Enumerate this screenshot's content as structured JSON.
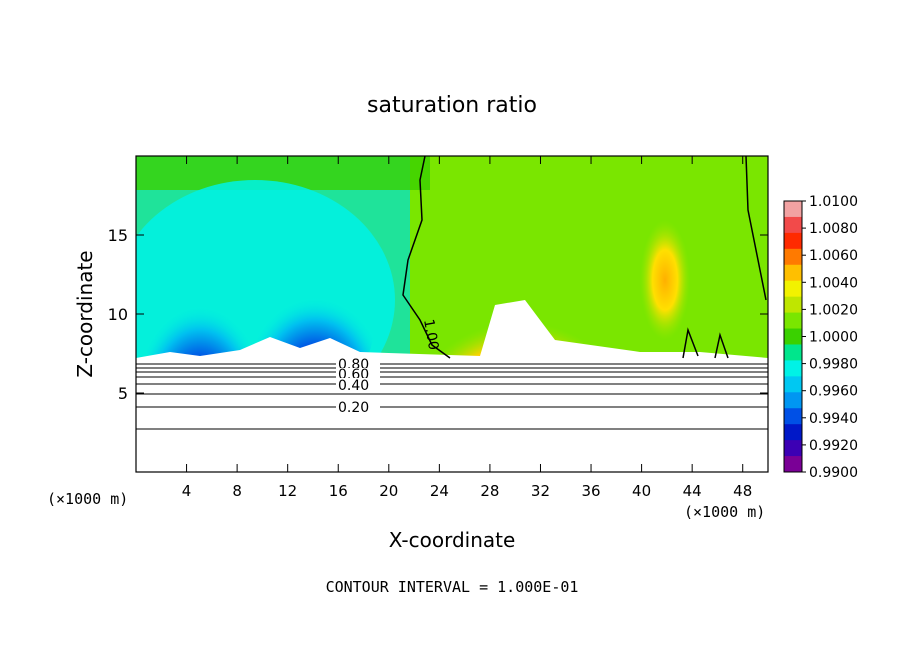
{
  "chart_data": {
    "type": "heatmap",
    "title": "saturation ratio",
    "xlabel": "X-coordinate",
    "ylabel": "Z-coordinate",
    "x_unit_left": "(×1000 m)",
    "x_unit_right": "(×1000 m)",
    "footer": "CONTOUR INTERVAL = 1.000E-01",
    "xlim": [
      0,
      50
    ],
    "ylim": [
      0,
      20
    ],
    "x_ticks": [
      "4",
      "8",
      "12",
      "16",
      "20",
      "24",
      "28",
      "32",
      "36",
      "40",
      "44",
      "48"
    ],
    "x_tick_values": [
      4,
      8,
      12,
      16,
      20,
      24,
      28,
      32,
      36,
      40,
      44,
      48
    ],
    "y_ticks": [
      "5",
      "10",
      "15"
    ],
    "y_tick_values": [
      5,
      10,
      15
    ],
    "colorbar": {
      "labels": [
        "1.0100",
        "1.0080",
        "1.0060",
        "1.0040",
        "1.0020",
        "1.0000",
        "0.9980",
        "0.9960",
        "0.9940",
        "0.9920",
        "0.9900"
      ],
      "values": [
        1.01,
        1.008,
        1.006,
        1.004,
        1.002,
        1.0,
        0.998,
        0.996,
        0.994,
        0.992,
        0.99
      ],
      "colors": [
        "#f2a2a2",
        "#f24a4a",
        "#ff2a00",
        "#ff7a00",
        "#ffbf00",
        "#f2f200",
        "#bfe600",
        "#7ae600",
        "#3ad100",
        "#00e68c",
        "#00f2e6",
        "#00c8f2",
        "#0096f2",
        "#0050e6",
        "#0018c8",
        "#3c00b4",
        "#7a0096"
      ]
    },
    "labeled_contours": [
      {
        "label": "0.20",
        "z": 4.2
      },
      {
        "label": "0.40",
        "z": 5.4
      },
      {
        "label": "0.60",
        "z": 6.1
      },
      {
        "label": "0.80",
        "z": 6.7
      },
      {
        "label": "1.00",
        "z": 9.0
      }
    ]
  }
}
